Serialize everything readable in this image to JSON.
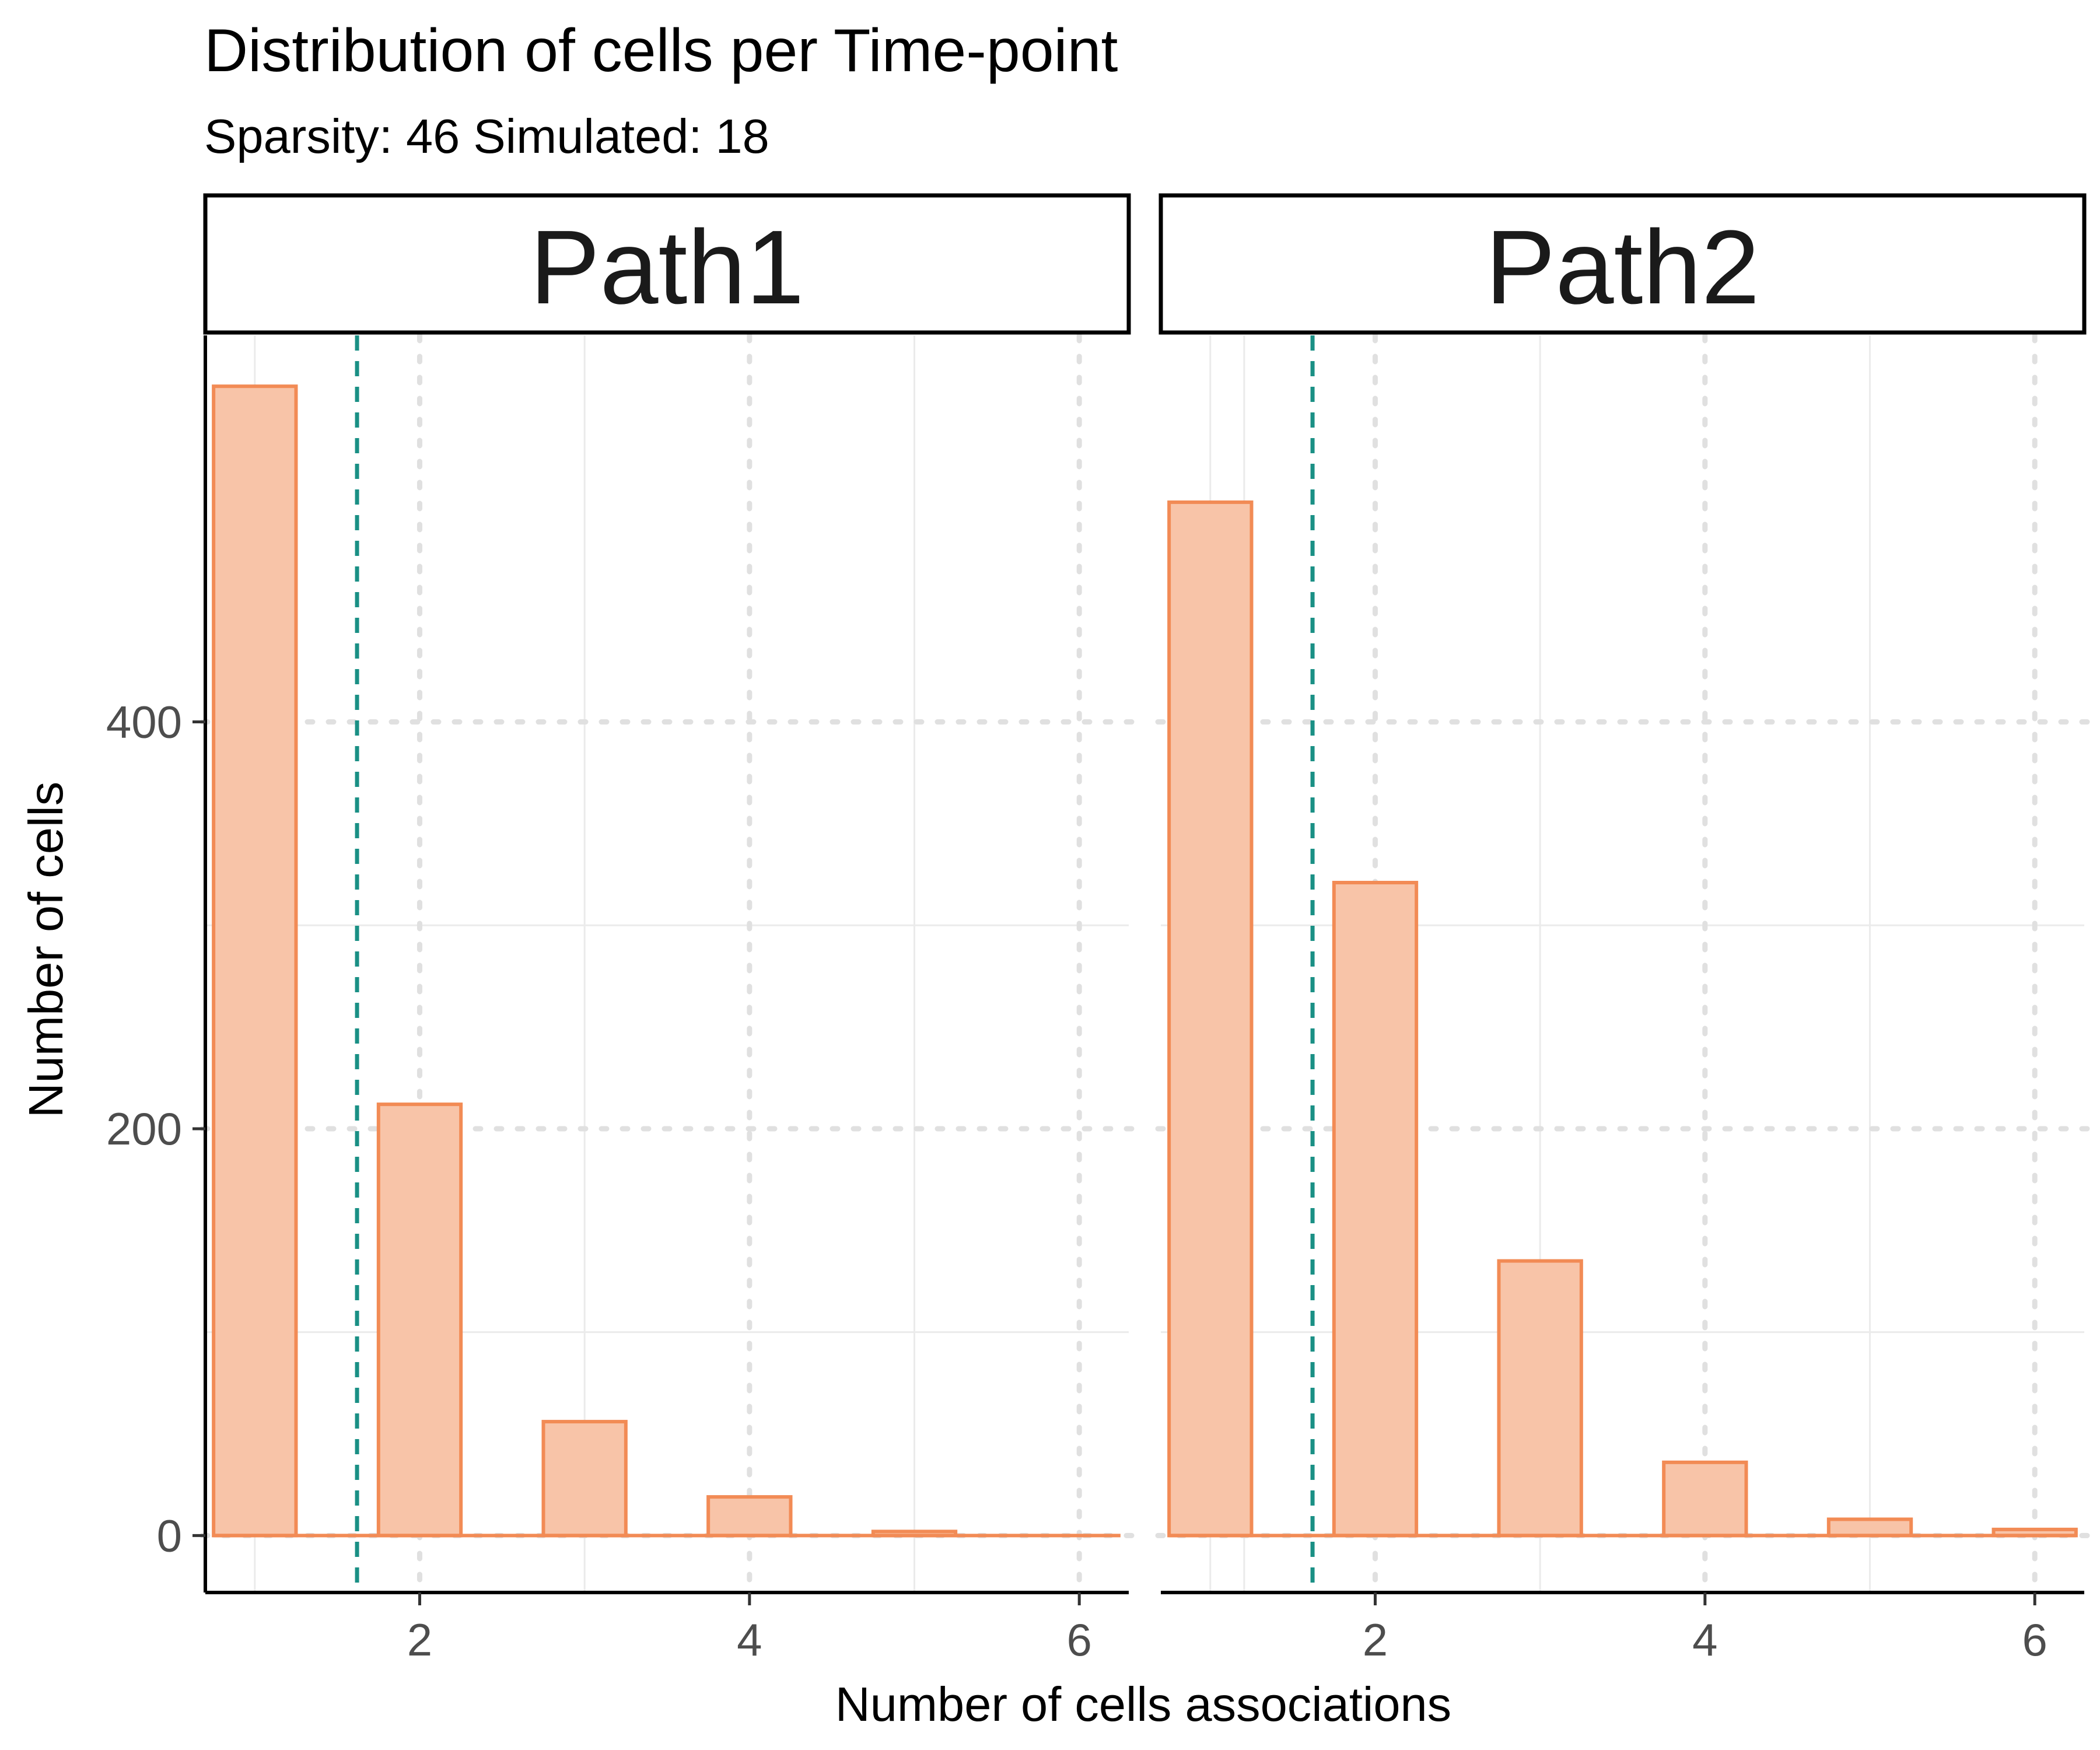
{
  "chart_data": {
    "type": "bar",
    "title": "Distribution of cells per Time-point",
    "subtitle": "Sparsity: 46 Simulated: 18",
    "xlabel": "Number of cells associations",
    "ylabel": "Number of cells",
    "xlim": [
      0.7,
      6.3
    ],
    "ylim": [
      -28,
      590
    ],
    "x_ticks": [
      2,
      4,
      6
    ],
    "y_ticks": [
      0,
      200,
      400
    ],
    "bar_width": 0.5,
    "reference_line": {
      "x": 1.62,
      "style": "dashed",
      "color": "#1a9085"
    },
    "colors": {
      "bar_fill": "#f8c4a8",
      "bar_stroke": "#f28b55",
      "grid": "#ebebeb",
      "grid_dotted": "#e0e0e0"
    },
    "grid": true,
    "panels": [
      {
        "name": "Path1",
        "x": [
          1,
          2,
          3,
          4,
          5,
          6
        ],
        "values": [
          565,
          212,
          56,
          19,
          2,
          0
        ]
      },
      {
        "name": "Path2",
        "x": [
          1,
          2,
          3,
          4,
          5,
          6
        ],
        "values": [
          508,
          321,
          135,
          36,
          8,
          3
        ]
      }
    ]
  }
}
